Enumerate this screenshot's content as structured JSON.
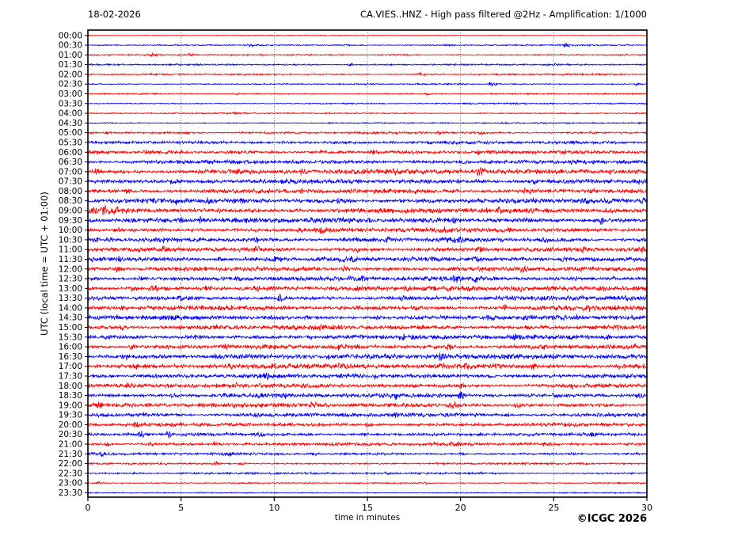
{
  "figure": {
    "date_label": "18-02-2026",
    "title": "CA.VIES..HNZ - High pass filtered @2Hz - Amplification: 1/1000",
    "xlabel": "time in minutes",
    "ylabel": "UTC (local time = UTC + 01:00)",
    "copyright": "©ICGC 2026"
  },
  "chart_data": {
    "type": "line",
    "subtype": "helicorder-seismogram",
    "title": "CA.VIES..HNZ - High pass filtered @2Hz - Amplification: 1/1000",
    "date": "18-02-2026",
    "station": "CA.VIES..HNZ",
    "filter": "High pass filtered @2Hz",
    "amplification": "1/1000",
    "xlabel": "time in minutes",
    "ylabel": "UTC (local time = UTC + 01:00)",
    "xlim": [
      0,
      30
    ],
    "x_ticks": [
      0,
      5,
      10,
      15,
      20,
      25,
      30
    ],
    "grid_x": [
      5,
      10,
      15,
      20,
      25
    ],
    "grid": "vertical-dotted",
    "legend": "none",
    "colors": {
      "even": "#ff0000",
      "odd": "#0000ff",
      "frame": "#000000",
      "grid": "#444444"
    },
    "row_interval_minutes": 30,
    "rows": [
      {
        "t": "00:00",
        "n": 0.3,
        "b": []
      },
      {
        "t": "00:30",
        "n": 0.5,
        "b": [
          [
            8.6,
            1.4
          ],
          [
            13.8,
            1.2
          ],
          [
            19.2,
            1.2
          ],
          [
            25.6,
            2.2
          ]
        ]
      },
      {
        "t": "01:00",
        "n": 0.6,
        "b": [
          [
            3.4,
            2.0
          ],
          [
            5.4,
            1.5
          ],
          [
            17.0,
            1.2
          ]
        ]
      },
      {
        "t": "01:30",
        "n": 0.6,
        "b": [
          [
            14.0,
            1.4
          ],
          [
            25.0,
            1.0
          ]
        ]
      },
      {
        "t": "02:00",
        "n": 0.6,
        "b": [
          [
            17.8,
            2.0
          ]
        ]
      },
      {
        "t": "02:30",
        "n": 0.5,
        "b": [
          [
            21.6,
            2.6
          ],
          [
            29.4,
            1.2
          ]
        ]
      },
      {
        "t": "03:00",
        "n": 0.5,
        "b": [
          [
            8.0,
            1.0
          ],
          [
            18.2,
            1.2
          ]
        ]
      },
      {
        "t": "03:30",
        "n": 0.5,
        "b": [
          [
            23.0,
            0.8
          ]
        ]
      },
      {
        "t": "04:00",
        "n": 0.5,
        "b": [
          [
            7.8,
            1.8
          ]
        ]
      },
      {
        "t": "04:30",
        "n": 0.5,
        "b": [
          [
            13.0,
            0.8
          ]
        ]
      },
      {
        "t": "05:00",
        "n": 0.8,
        "b": [
          [
            1.0,
            1.5
          ],
          [
            5.3,
            1.5
          ],
          [
            15.0,
            1.5
          ],
          [
            18.8,
            1.6
          ],
          [
            21.0,
            1.5
          ],
          [
            27.0,
            1.2
          ]
        ]
      },
      {
        "t": "05:30",
        "n": 1.1,
        "b": [
          [
            0.6,
            2.0
          ],
          [
            10.5,
            1.5
          ],
          [
            20.0,
            1.4
          ],
          [
            25.0,
            1.4
          ]
        ]
      },
      {
        "t": "06:00",
        "n": 1.2,
        "b": [
          [
            3.0,
            2.0
          ],
          [
            12.5,
            1.8
          ],
          [
            15.2,
            3.5
          ],
          [
            21.0,
            2.5
          ],
          [
            25.5,
            2.0
          ]
        ]
      },
      {
        "t": "06:30",
        "n": 1.4,
        "b": [
          [
            6.5,
            2.0
          ],
          [
            11.0,
            2.0
          ],
          [
            20.0,
            3.0
          ],
          [
            26.0,
            3.0
          ],
          [
            28.5,
            2.5
          ]
        ]
      },
      {
        "t": "07:00",
        "n": 1.7,
        "b": [
          [
            0.4,
            3.5
          ],
          [
            6.0,
            2.5
          ],
          [
            8.0,
            2.5
          ],
          [
            11.5,
            3.0
          ],
          [
            16.5,
            2.0
          ],
          [
            21.0,
            5.0
          ],
          [
            28.0,
            2.0
          ]
        ]
      },
      {
        "t": "07:30",
        "n": 1.6,
        "b": [
          [
            4.5,
            2.5
          ],
          [
            13.0,
            2.0
          ],
          [
            19.5,
            2.0
          ],
          [
            24.0,
            2.5
          ],
          [
            29.5,
            3.0
          ]
        ]
      },
      {
        "t": "08:00",
        "n": 1.6,
        "b": [
          [
            2.0,
            2.5
          ],
          [
            8.5,
            2.0
          ],
          [
            11.5,
            3.0
          ],
          [
            17.5,
            2.0
          ],
          [
            23.5,
            4.0
          ],
          [
            27.0,
            2.5
          ]
        ]
      },
      {
        "t": "08:30",
        "n": 1.7,
        "b": [
          [
            4.7,
            2.5
          ],
          [
            6.5,
            2.5
          ],
          [
            13.5,
            2.5
          ],
          [
            24.0,
            2.0
          ],
          [
            26.8,
            4.0
          ],
          [
            29.8,
            3.0
          ]
        ]
      },
      {
        "t": "09:00",
        "n": 1.8,
        "b": [
          [
            0.3,
            4.0
          ],
          [
            0.8,
            5.0
          ],
          [
            1.4,
            3.5
          ],
          [
            11.3,
            2.5
          ],
          [
            18.5,
            2.5
          ],
          [
            22.0,
            2.0
          ],
          [
            27.8,
            3.0
          ]
        ]
      },
      {
        "t": "09:30",
        "n": 1.7,
        "b": [
          [
            5.0,
            2.5
          ],
          [
            6.0,
            3.5
          ],
          [
            9.5,
            2.0
          ],
          [
            15.0,
            2.5
          ],
          [
            19.5,
            2.5
          ],
          [
            23.3,
            3.0
          ],
          [
            27.5,
            3.5
          ]
        ]
      },
      {
        "t": "10:00",
        "n": 1.6,
        "b": [
          [
            1.5,
            2.5
          ],
          [
            8.0,
            2.0
          ],
          [
            12.5,
            2.5
          ],
          [
            16.0,
            2.0
          ],
          [
            19.0,
            2.5
          ],
          [
            22.5,
            2.5
          ],
          [
            29.0,
            2.0
          ]
        ]
      },
      {
        "t": "10:30",
        "n": 1.6,
        "b": [
          [
            4.0,
            2.5
          ],
          [
            9.0,
            2.0
          ],
          [
            14.5,
            2.0
          ],
          [
            16.0,
            3.0
          ],
          [
            19.7,
            4.0
          ],
          [
            24.5,
            2.5
          ]
        ]
      },
      {
        "t": "11:00",
        "n": 1.7,
        "b": [
          [
            1.3,
            2.5
          ],
          [
            4.0,
            2.5
          ],
          [
            9.0,
            2.0
          ],
          [
            14.3,
            2.5
          ],
          [
            21.0,
            4.5
          ],
          [
            26.5,
            2.5
          ],
          [
            29.7,
            3.0
          ]
        ]
      },
      {
        "t": "11:30",
        "n": 1.7,
        "b": [
          [
            1.7,
            3.0
          ],
          [
            7.0,
            2.5
          ],
          [
            10.0,
            2.5
          ],
          [
            14.2,
            4.0
          ],
          [
            20.8,
            4.0
          ],
          [
            25.5,
            2.5
          ]
        ]
      },
      {
        "t": "12:00",
        "n": 1.6,
        "b": [
          [
            1.5,
            2.5
          ],
          [
            9.0,
            2.0
          ],
          [
            13.7,
            2.5
          ],
          [
            21.0,
            2.5
          ],
          [
            23.3,
            2.5
          ],
          [
            29.5,
            2.5
          ]
        ]
      },
      {
        "t": "12:30",
        "n": 1.6,
        "b": [
          [
            2.8,
            2.5
          ],
          [
            8.0,
            2.5
          ],
          [
            14.7,
            2.5
          ],
          [
            19.7,
            3.0
          ],
          [
            20.8,
            3.0
          ],
          [
            28.0,
            2.5
          ]
        ]
      },
      {
        "t": "13:00",
        "n": 1.7,
        "b": [
          [
            2.3,
            3.0
          ],
          [
            3.5,
            3.0
          ],
          [
            6.3,
            2.5
          ],
          [
            9.0,
            2.5
          ],
          [
            14.5,
            2.5
          ],
          [
            17.0,
            2.5
          ],
          [
            20.5,
            2.5
          ],
          [
            23.0,
            3.0
          ],
          [
            27.5,
            2.5
          ]
        ]
      },
      {
        "t": "13:30",
        "n": 1.6,
        "b": [
          [
            4.8,
            2.5
          ],
          [
            8.0,
            2.5
          ],
          [
            10.3,
            4.5
          ],
          [
            16.8,
            2.5
          ],
          [
            22.0,
            2.5
          ],
          [
            26.5,
            2.5
          ]
        ]
      },
      {
        "t": "14:00",
        "n": 1.7,
        "b": [
          [
            1.7,
            2.5
          ],
          [
            5.5,
            3.0
          ],
          [
            10.5,
            2.5
          ],
          [
            17.5,
            2.5
          ],
          [
            22.3,
            3.0
          ],
          [
            26.8,
            2.5
          ]
        ]
      },
      {
        "t": "14:30",
        "n": 1.6,
        "b": [
          [
            1.3,
            2.5
          ],
          [
            4.3,
            2.5
          ],
          [
            9.7,
            2.5
          ],
          [
            15.5,
            2.5
          ],
          [
            21.5,
            2.5
          ],
          [
            26.3,
            2.5
          ]
        ]
      },
      {
        "t": "15:00",
        "n": 1.6,
        "b": [
          [
            1.8,
            2.5
          ],
          [
            6.8,
            3.0
          ],
          [
            12.3,
            2.5
          ],
          [
            17.8,
            2.5
          ],
          [
            23.5,
            2.5
          ],
          [
            28.3,
            3.0
          ]
        ]
      },
      {
        "t": "15:30",
        "n": 1.6,
        "b": [
          [
            0.8,
            2.5
          ],
          [
            5.8,
            2.5
          ],
          [
            11.8,
            2.5
          ],
          [
            16.8,
            2.5
          ],
          [
            22.8,
            2.5
          ],
          [
            27.8,
            2.5
          ]
        ]
      },
      {
        "t": "16:00",
        "n": 1.6,
        "b": [
          [
            2.3,
            2.5
          ],
          [
            7.3,
            2.5
          ],
          [
            13.3,
            2.5
          ],
          [
            19.3,
            3.0
          ],
          [
            24.3,
            2.5
          ],
          [
            29.3,
            2.5
          ]
        ]
      },
      {
        "t": "16:30",
        "n": 1.7,
        "b": [
          [
            1.9,
            3.0
          ],
          [
            6.9,
            2.5
          ],
          [
            12.9,
            2.5
          ],
          [
            18.9,
            4.5
          ],
          [
            24.9,
            2.5
          ]
        ]
      },
      {
        "t": "17:00",
        "n": 1.8,
        "b": [
          [
            2.5,
            2.5
          ],
          [
            7.5,
            3.0
          ],
          [
            13.5,
            2.5
          ],
          [
            18.8,
            3.5
          ],
          [
            20.3,
            4.0
          ],
          [
            21.8,
            3.5
          ],
          [
            23.8,
            3.0
          ],
          [
            28.5,
            2.5
          ]
        ]
      },
      {
        "t": "17:30",
        "n": 1.6,
        "b": [
          [
            3.5,
            2.5
          ],
          [
            9.5,
            2.5
          ],
          [
            15.5,
            2.5
          ],
          [
            21.5,
            2.5
          ],
          [
            27.0,
            2.5
          ]
        ]
      },
      {
        "t": "18:00",
        "n": 1.5,
        "b": [
          [
            2.0,
            2.5
          ],
          [
            8.0,
            2.5
          ],
          [
            14.0,
            2.5
          ],
          [
            20.0,
            2.5
          ],
          [
            26.0,
            2.5
          ]
        ]
      },
      {
        "t": "18:30",
        "n": 1.5,
        "b": [
          [
            4.5,
            2.5
          ],
          [
            10.5,
            2.5
          ],
          [
            16.5,
            2.5
          ],
          [
            20.0,
            4.0
          ],
          [
            25.0,
            2.5
          ],
          [
            29.5,
            3.0
          ]
        ]
      },
      {
        "t": "19:00",
        "n": 1.5,
        "b": [
          [
            0.5,
            3.0
          ],
          [
            6.0,
            2.5
          ],
          [
            12.0,
            2.5
          ],
          [
            19.5,
            3.5
          ],
          [
            23.0,
            3.5
          ],
          [
            27.5,
            2.5
          ]
        ]
      },
      {
        "t": "19:30",
        "n": 1.4,
        "b": [
          [
            3.0,
            2.0
          ],
          [
            9.0,
            2.0
          ],
          [
            16.5,
            3.5
          ],
          [
            22.5,
            2.0
          ],
          [
            28.0,
            2.0
          ]
        ]
      },
      {
        "t": "20:00",
        "n": 1.3,
        "b": [
          [
            2.5,
            2.0
          ],
          [
            8.5,
            2.0
          ],
          [
            15.0,
            2.0
          ],
          [
            21.0,
            2.0
          ],
          [
            26.5,
            2.0
          ]
        ]
      },
      {
        "t": "20:30",
        "n": 1.1,
        "b": [
          [
            2.8,
            3.5
          ],
          [
            4.3,
            3.5
          ],
          [
            9.2,
            2.5
          ],
          [
            14.8,
            2.0
          ],
          [
            21.0,
            1.8
          ],
          [
            27.0,
            1.8
          ]
        ]
      },
      {
        "t": "21:00",
        "n": 1.1,
        "b": [
          [
            1.0,
            2.0
          ],
          [
            3.3,
            2.5
          ],
          [
            6.8,
            2.5
          ],
          [
            13.0,
            2.0
          ],
          [
            19.6,
            2.5
          ],
          [
            24.5,
            2.0
          ]
        ]
      },
      {
        "t": "21:30",
        "n": 0.9,
        "b": [
          [
            0.7,
            2.0
          ],
          [
            7.5,
            1.5
          ],
          [
            12.0,
            1.5
          ],
          [
            20.0,
            1.5
          ],
          [
            26.0,
            1.5
          ]
        ]
      },
      {
        "t": "22:00",
        "n": 0.7,
        "b": [
          [
            6.8,
            2.0
          ],
          [
            8.2,
            1.5
          ],
          [
            18.8,
            1.5
          ],
          [
            24.0,
            1.0
          ]
        ]
      },
      {
        "t": "22:30",
        "n": 0.7,
        "b": [
          [
            2.5,
            1.5
          ],
          [
            10.0,
            1.0
          ],
          [
            16.0,
            1.2
          ],
          [
            21.0,
            1.0
          ]
        ]
      },
      {
        "t": "23:00",
        "n": 0.5,
        "b": [
          [
            0.5,
            1.5
          ],
          [
            18.0,
            1.0
          ]
        ]
      },
      {
        "t": "23:30",
        "n": 0.4,
        "b": []
      }
    ]
  }
}
